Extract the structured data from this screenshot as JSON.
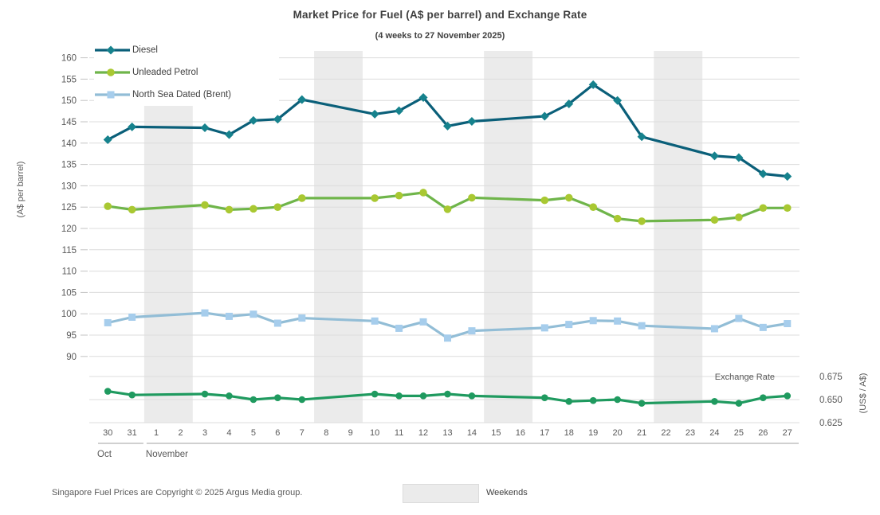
{
  "footer": {
    "copyright": "Singapore Fuel Prices are Copyright © 2025 Argus Media group.",
    "weekends_label": "Weekends"
  },
  "chart_data": {
    "type": "line",
    "title": "Market Price for Fuel (A$ per barrel) and Exchange Rate",
    "subtitle": "(4 weeks to 27 November 2025)",
    "x": {
      "days": [
        "30",
        "31",
        "1",
        "2",
        "3",
        "6",
        "7",
        "8",
        "9",
        "10",
        "11",
        "12",
        "13",
        "14",
        "15",
        "16",
        "17",
        "18",
        "19",
        "20",
        "21",
        "22",
        "23",
        "24",
        "25",
        "26",
        "27"
      ],
      "note": "see x_days_full",
      "month_groups": [
        {
          "label": "Oct",
          "from": "30",
          "to": "31"
        },
        {
          "label": "November",
          "from": "1",
          "to": "27"
        }
      ]
    },
    "x_days_full": [
      "30",
      "31",
      "1",
      "2",
      "3",
      "4",
      "5",
      "6",
      "7",
      "10",
      "11",
      "12",
      "13",
      "14",
      "15",
      "16",
      "17",
      "18",
      "19",
      "20",
      "21",
      "22",
      "23",
      "24",
      "25",
      "26",
      "27"
    ],
    "weekend_bands": [
      [
        "1",
        "2"
      ],
      [
        "8",
        "9"
      ],
      [
        "15",
        "16"
      ],
      [
        "22",
        "23"
      ]
    ],
    "axes": {
      "left": {
        "title": "(A$ per barrel)",
        "min": 90,
        "max": 160,
        "step": 5
      },
      "right": {
        "title": "(US$ / A$)",
        "ticks": [
          0.675,
          0.65,
          0.625
        ],
        "tick_labels": [
          "0.675",
          "0.650",
          "0.625"
        ],
        "annotation": "Exchange Rate"
      }
    },
    "sample_days": [
      "30",
      "31",
      "3",
      "4",
      "5",
      "6",
      "7",
      "10",
      "11",
      "12",
      "13",
      "14",
      "17",
      "18",
      "19",
      "20",
      "21",
      "24",
      "25",
      "26",
      "27"
    ],
    "series": [
      {
        "name": "Diesel",
        "axis": "left",
        "marker": "diamond",
        "line_color": "#0a5f79",
        "marker_color": "#16828d",
        "show_in_legend": true,
        "values": [
          140.8,
          143.8,
          143.6,
          142.0,
          145.3,
          145.6,
          150.2,
          146.8,
          147.6,
          150.7,
          144.0,
          145.1,
          146.3,
          149.2,
          153.7,
          150.0,
          141.5,
          137.0,
          136.6,
          132.8,
          132.2
        ]
      },
      {
        "name": "Unleaded Petrol",
        "axis": "left",
        "marker": "circle",
        "line_color": "#6fb54a",
        "marker_color": "#a9c832",
        "show_in_legend": true,
        "values": [
          125.2,
          124.4,
          125.5,
          124.4,
          124.6,
          125.0,
          127.1,
          127.1,
          127.7,
          128.4,
          124.5,
          127.2,
          126.6,
          127.2,
          125.0,
          122.3,
          121.7,
          122.0,
          122.6,
          124.8,
          124.8
        ]
      },
      {
        "name": "North Sea Dated (Brent)",
        "axis": "left",
        "marker": "square",
        "line_color": "#92bdd6",
        "marker_color": "#a6cdec",
        "show_in_legend": true,
        "values": [
          97.9,
          99.2,
          100.2,
          99.4,
          99.9,
          97.8,
          99.0,
          98.3,
          96.6,
          98.1,
          94.3,
          96.0,
          96.7,
          97.5,
          98.4,
          98.3,
          97.2,
          96.5,
          98.9,
          96.8,
          97.7
        ]
      },
      {
        "name": "Exchange Rate",
        "axis": "right",
        "marker": "circle-small",
        "line_color": "#1f9a5f",
        "marker_color": "#1f9a5f",
        "show_in_legend": false,
        "values": [
          0.659,
          0.655,
          0.656,
          0.654,
          0.65,
          0.652,
          0.65,
          0.656,
          0.654,
          0.654,
          0.656,
          0.654,
          0.652,
          0.648,
          0.649,
          0.65,
          0.646,
          0.648,
          0.646,
          0.652,
          0.654
        ]
      }
    ],
    "colors": {
      "weekend_band": "#ebebeb",
      "gridline": "#dcdcdc",
      "tick": "#c3c3c3",
      "month_line": "#a0a0a0",
      "axis_text": "#595959"
    }
  }
}
